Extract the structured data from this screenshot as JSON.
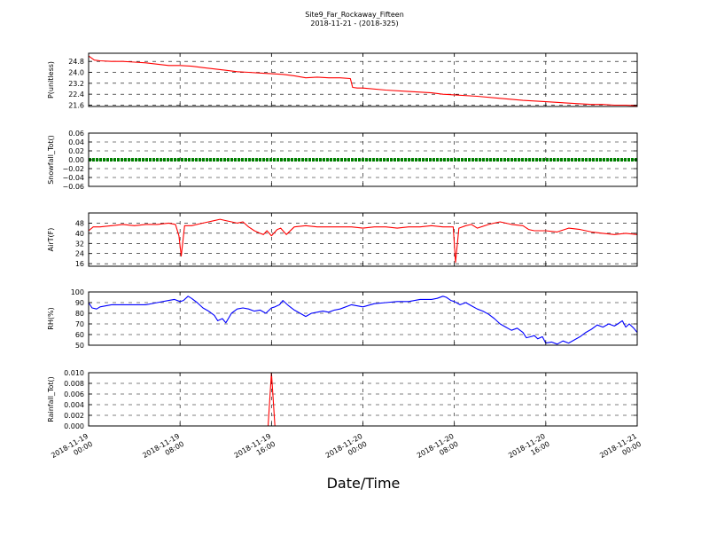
{
  "figure": {
    "title_line1": "Site9_Far_Rockaway_Fifteen",
    "title_line2": "2018-11-21 - (2018-325)",
    "xlabel": "Date/Time",
    "x_tick_labels": [
      [
        "2018-11-19",
        "00:00"
      ],
      [
        "2018-11-19",
        "08:00"
      ],
      [
        "2018-11-19",
        "16:00"
      ],
      [
        "2018-11-20",
        "00:00"
      ],
      [
        "2018-11-20",
        "08:00"
      ],
      [
        "2018-11-20",
        "16:00"
      ],
      [
        "2018-11-21",
        "00:00"
      ]
    ]
  },
  "chart_data": [
    {
      "type": "line",
      "ylabel": "P(unitless)",
      "color": "#ff0000",
      "xlim": [
        0,
        48
      ],
      "ylim": [
        21.5,
        25.4
      ],
      "yticks": [
        21.6,
        22.4,
        23.2,
        24.0,
        24.8
      ],
      "ytick_labels": [
        "21.6",
        "22.4",
        "23.2",
        "24.0",
        "24.8"
      ],
      "grid": true,
      "x": [
        0,
        0.5,
        1,
        2,
        3,
        4,
        5,
        6,
        7,
        8,
        9,
        10,
        11,
        12,
        13,
        14,
        15,
        16,
        17,
        18,
        19,
        20,
        21,
        22,
        22.9,
        23.1,
        23.5,
        24,
        26,
        28,
        30,
        31,
        32,
        34,
        36,
        38,
        40,
        42,
        43,
        44,
        45,
        46,
        47,
        48
      ],
      "values": [
        25.2,
        24.9,
        24.85,
        24.8,
        24.8,
        24.75,
        24.7,
        24.6,
        24.5,
        24.5,
        24.45,
        24.35,
        24.25,
        24.15,
        24.05,
        24.0,
        23.95,
        23.9,
        23.85,
        23.75,
        23.6,
        23.65,
        23.6,
        23.6,
        23.55,
        22.9,
        22.85,
        22.85,
        22.7,
        22.6,
        22.5,
        22.4,
        22.35,
        22.25,
        22.1,
        21.95,
        21.85,
        21.75,
        21.7,
        21.65,
        21.65,
        21.6,
        21.6,
        21.55
      ]
    },
    {
      "type": "line",
      "ylabel": "Snowfall_Tot()",
      "color": "#008000",
      "xlim": [
        0,
        48
      ],
      "ylim": [
        -0.06,
        0.06
      ],
      "yticks": [
        -0.06,
        -0.04,
        -0.02,
        0.0,
        0.02,
        0.04,
        0.06
      ],
      "ytick_labels": [
        "−0.06",
        "−0.04",
        "−0.02",
        "0.00",
        "0.02",
        "0.04",
        "0.06"
      ],
      "grid": true,
      "x": [
        0,
        48
      ],
      "values": [
        0,
        0
      ]
    },
    {
      "type": "line",
      "ylabel": "AirT(F)",
      "color": "#ff0000",
      "xlim": [
        0,
        48
      ],
      "ylim": [
        14,
        56
      ],
      "yticks": [
        16,
        24,
        32,
        40,
        48
      ],
      "ytick_labels": [
        "16",
        "24",
        "32",
        "40",
        "48"
      ],
      "grid": true,
      "x": [
        0,
        0.4,
        1,
        2,
        3,
        4,
        5,
        6,
        7,
        7.6,
        7.9,
        8.1,
        8.4,
        9,
        10,
        10.5,
        11,
        11.5,
        12,
        12.5,
        13,
        13.5,
        14,
        14.5,
        15,
        15.3,
        15.6,
        16,
        16.5,
        16.8,
        17.3,
        18,
        19,
        20,
        21,
        22,
        23,
        24,
        25,
        26,
        27,
        28,
        29,
        30,
        31,
        31.9,
        32.1,
        32.4,
        33,
        33.5,
        34,
        35,
        35.5,
        36,
        37,
        38,
        38.5,
        39,
        40,
        41,
        42,
        43,
        44,
        45,
        46,
        47,
        48
      ],
      "values": [
        42,
        45,
        45,
        46,
        47,
        46,
        47,
        47,
        48,
        47,
        38,
        22,
        46,
        46,
        48,
        49,
        50,
        51,
        50,
        49,
        48,
        49,
        45,
        42,
        40,
        39,
        42,
        38,
        43,
        44,
        39,
        45,
        46,
        45,
        45,
        45,
        45,
        44,
        45,
        45,
        44,
        45,
        45,
        46,
        45,
        45,
        17,
        44,
        46,
        47,
        44,
        47,
        48,
        49,
        47,
        46,
        43,
        42,
        42,
        41,
        44,
        43,
        41,
        40,
        39,
        40,
        39
      ]
    },
    {
      "type": "line",
      "ylabel": "RH(%)",
      "color": "#0000ff",
      "xlim": [
        0,
        48
      ],
      "ylim": [
        50,
        100
      ],
      "yticks": [
        50,
        60,
        70,
        80,
        90,
        100
      ],
      "ytick_labels": [
        "50",
        "60",
        "70",
        "80",
        "90",
        "100"
      ],
      "grid": true,
      "x": [
        0,
        0.3,
        0.7,
        1,
        2,
        3,
        4,
        5,
        6,
        7,
        7.5,
        8,
        8.3,
        8.7,
        9,
        9.5,
        10,
        10.5,
        11,
        11.3,
        11.7,
        12,
        12.5,
        13,
        13.5,
        14,
        14.5,
        15,
        15.5,
        16,
        16.3,
        16.7,
        17,
        17.5,
        18,
        18.5,
        19,
        19.5,
        20,
        20.5,
        21,
        21.5,
        22,
        23,
        24,
        25,
        26,
        27,
        28,
        29,
        30,
        30.5,
        31,
        31.3,
        31.7,
        32,
        32.5,
        33,
        33.5,
        34,
        34.5,
        35,
        35.5,
        36,
        36.5,
        37,
        37.5,
        38,
        38.3,
        38.7,
        39,
        39.3,
        39.7,
        40,
        40.5,
        41,
        41.5,
        42,
        42.5,
        43,
        43.5,
        44,
        44.5,
        45,
        45.5,
        46,
        46.3,
        46.7,
        47,
        47.3,
        47.7,
        48
      ],
      "values": [
        90,
        85,
        84,
        86,
        88,
        88,
        88,
        88,
        90,
        92,
        93,
        91,
        92,
        96,
        94,
        90,
        85,
        82,
        78,
        73,
        75,
        71,
        80,
        84,
        85,
        84,
        82,
        83,
        80,
        85,
        86,
        88,
        92,
        87,
        83,
        80,
        77,
        80,
        81,
        82,
        81,
        83,
        84,
        88,
        86,
        89,
        90,
        91,
        91,
        93,
        93,
        94,
        96,
        95,
        92,
        91,
        88,
        90,
        87,
        84,
        82,
        79,
        75,
        70,
        67,
        64,
        66,
        62,
        57,
        58,
        59,
        56,
        58,
        52,
        53,
        51,
        54,
        52,
        55,
        58,
        62,
        65,
        69,
        67,
        70,
        68,
        70,
        73,
        67,
        70,
        66,
        62
      ]
    },
    {
      "type": "line",
      "ylabel": "Rainfall_Tot()",
      "color": "#ff0000",
      "xlim": [
        0,
        48
      ],
      "ylim": [
        0,
        0.01
      ],
      "yticks": [
        0.0,
        0.002,
        0.004,
        0.006,
        0.008,
        0.01
      ],
      "ytick_labels": [
        "0.000",
        "0.002",
        "0.004",
        "0.006",
        "0.008",
        "0.010"
      ],
      "grid": true,
      "x": [
        0,
        15.7,
        16.0,
        16.3,
        48
      ],
      "values": [
        0,
        0,
        0.01,
        0,
        0
      ]
    }
  ]
}
